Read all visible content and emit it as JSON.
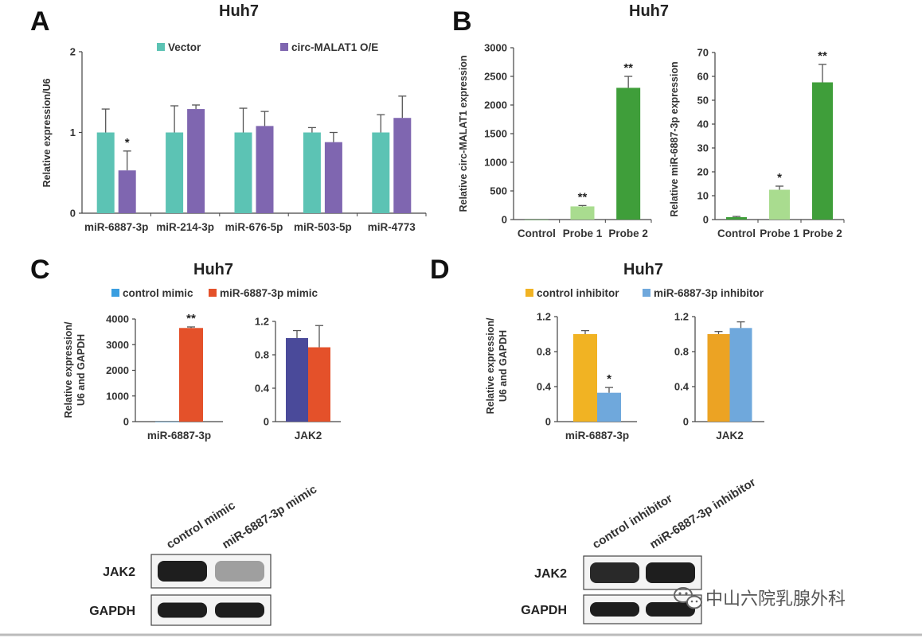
{
  "panels": {
    "A": {
      "letter": "A",
      "title": "Huh7"
    },
    "B": {
      "letter": "B",
      "title": "Huh7"
    },
    "C": {
      "letter": "C",
      "title": "Huh7"
    },
    "D": {
      "letter": "D",
      "title": "Huh7"
    }
  },
  "colors": {
    "teal": "#5cc3b4",
    "purple": "#7f66b0",
    "lightgreen": "#a9dc8f",
    "darkgreen": "#3f9e3a",
    "blue": "#3a9ee0",
    "orange": "#e4512a",
    "navy": "#4a4a9a",
    "yellow": "#f1b323",
    "lightblue": "#6fa8dc",
    "gold": "#eca323"
  },
  "chart_data": [
    {
      "id": "A",
      "type": "bar",
      "ylabel": "Relative expression/U6",
      "xlabel": "",
      "ylim": [
        0,
        2
      ],
      "yticks": [
        "0",
        "1",
        "2"
      ],
      "categories": [
        "miR-6887-3p",
        "miR-214-3p",
        "miR-676-5p",
        "miR-503-5p",
        "miR-4773"
      ],
      "series": [
        {
          "name": "Vector",
          "color": "#5cc3b4",
          "values": [
            1.0,
            1.0,
            1.0,
            1.0,
            1.0
          ],
          "errors": [
            0.29,
            0.33,
            0.3,
            0.06,
            0.22
          ]
        },
        {
          "name": "circ-MALAT1 O/E",
          "color": "#7f66b0",
          "values": [
            0.53,
            1.29,
            1.08,
            0.88,
            1.18
          ],
          "errors": [
            0.24,
            0.05,
            0.18,
            0.12,
            0.27
          ]
        }
      ],
      "annotations": [
        {
          "text": "*",
          "category": 0,
          "series": 1
        }
      ]
    },
    {
      "id": "B1",
      "type": "bar",
      "ylabel": "Relative circ-MALAT1 expression",
      "xlabel": "",
      "ylim": [
        0,
        3000
      ],
      "yticks": [
        "0",
        "500",
        "1000",
        "1500",
        "2000",
        "2500",
        "3000"
      ],
      "categories": [
        "Control",
        "Probe 1",
        "Probe 2"
      ],
      "series": [
        {
          "name": "",
          "colors": [
            "#3f9e3a",
            "#a9dc8f",
            "#3f9e3a"
          ],
          "values": [
            1,
            230,
            2300
          ],
          "errors": [
            0,
            15,
            200
          ]
        }
      ],
      "annotations": [
        {
          "text": "**",
          "category": 1,
          "series": 0
        },
        {
          "text": "**",
          "category": 2,
          "series": 0
        }
      ]
    },
    {
      "id": "B2",
      "type": "bar",
      "ylabel": "Relative miR-6887-3p expression",
      "xlabel": "",
      "ylim": [
        0,
        70
      ],
      "yticks": [
        "0",
        "10",
        "20",
        "30",
        "40",
        "50",
        "60",
        "70"
      ],
      "categories": [
        "Control",
        "Probe 1",
        "Probe 2"
      ],
      "series": [
        {
          "name": "",
          "colors": [
            "#3f9e3a",
            "#a9dc8f",
            "#3f9e3a"
          ],
          "values": [
            1,
            12.5,
            57.5
          ],
          "errors": [
            0.3,
            1.5,
            7.5
          ]
        }
      ],
      "annotations": [
        {
          "text": "*",
          "category": 1,
          "series": 0
        },
        {
          "text": "**",
          "category": 2,
          "series": 0
        }
      ]
    },
    {
      "id": "C1",
      "type": "bar",
      "ylabel": "Relative expression/ U6 and GAPDH",
      "xlabel": "",
      "ylim": [
        0,
        4000
      ],
      "yticks": [
        "0",
        "1000",
        "2000",
        "3000",
        "4000"
      ],
      "categories": [
        "miR-6887-3p"
      ],
      "series": [
        {
          "name": "control mimic",
          "color": "#3a9ee0",
          "values": [
            1
          ],
          "errors": [
            0
          ]
        },
        {
          "name": "miR-6887-3p mimic",
          "color": "#e4512a",
          "values": [
            3650
          ],
          "errors": [
            40
          ]
        }
      ],
      "annotations": [
        {
          "text": "**",
          "category": 0,
          "series": 1
        }
      ]
    },
    {
      "id": "C2",
      "type": "bar",
      "ylabel": "",
      "xlabel": "",
      "ylim": [
        0,
        1.2
      ],
      "yticks": [
        "0",
        "0.4",
        "0.8",
        "1.2"
      ],
      "categories": [
        "JAK2"
      ],
      "series": [
        {
          "name": "control mimic",
          "color": "#4a4a9a",
          "values": [
            1.0
          ],
          "errors": [
            0.09
          ]
        },
        {
          "name": "miR-6887-3p mimic",
          "color": "#e4512a",
          "values": [
            0.89
          ],
          "errors": [
            0.26
          ]
        }
      ]
    },
    {
      "id": "D1",
      "type": "bar",
      "ylabel": "Relative expression/ U6 and GAPDH",
      "xlabel": "",
      "ylim": [
        0,
        1.2
      ],
      "yticks": [
        "0",
        "0.4",
        "0.8",
        "1.2"
      ],
      "categories": [
        "miR-6887-3p"
      ],
      "series": [
        {
          "name": "control inhibitor",
          "color": "#f1b323",
          "values": [
            1.0
          ],
          "errors": [
            0.04
          ]
        },
        {
          "name": "miR-6887-3p inhibitor",
          "color": "#6fa8dc",
          "values": [
            0.33
          ],
          "errors": [
            0.06
          ]
        }
      ],
      "annotations": [
        {
          "text": "*",
          "category": 0,
          "series": 1
        }
      ]
    },
    {
      "id": "D2",
      "type": "bar",
      "ylabel": "",
      "xlabel": "",
      "ylim": [
        0,
        1.2
      ],
      "yticks": [
        "0",
        "0.4",
        "0.8",
        "1.2"
      ],
      "categories": [
        "JAK2"
      ],
      "series": [
        {
          "name": "control inhibitor",
          "color": "#eca323",
          "values": [
            1.0
          ],
          "errors": [
            0.03
          ]
        },
        {
          "name": "miR-6887-3p inhibitor",
          "color": "#6fa8dc",
          "values": [
            1.07
          ],
          "errors": [
            0.07
          ]
        }
      ]
    }
  ],
  "legends": {
    "A": [
      {
        "label": "Vector",
        "color": "#5cc3b4"
      },
      {
        "label": "circ-MALAT1 O/E",
        "color": "#7f66b0"
      }
    ],
    "C": [
      {
        "label": "control mimic",
        "color": "#3a9ee0"
      },
      {
        "label": "miR-6887-3p mimic",
        "color": "#e4512a"
      }
    ],
    "D": [
      {
        "label": "control inhibitor",
        "color": "#f1b323"
      },
      {
        "label": "miR-6887-3p inhibitor",
        "color": "#6fa8dc"
      }
    ]
  },
  "blots": {
    "left": {
      "lanes": [
        "control mimic",
        "miR-6887-3p mimic"
      ],
      "rows": [
        "JAK2",
        "GAPDH"
      ],
      "intensity": {
        "JAK2": [
          1.0,
          0.4
        ],
        "GAPDH": [
          1.0,
          1.0
        ]
      }
    },
    "right": {
      "lanes": [
        "control inhibitor",
        "miR-6887-3p inhibitor"
      ],
      "rows": [
        "JAK2",
        "GAPDH"
      ],
      "intensity": {
        "JAK2": [
          0.95,
          1.0
        ],
        "GAPDH": [
          1.0,
          1.0
        ]
      }
    }
  },
  "watermark": {
    "text": "中山六院乳腺外科",
    "icon": "wechat-icon"
  }
}
